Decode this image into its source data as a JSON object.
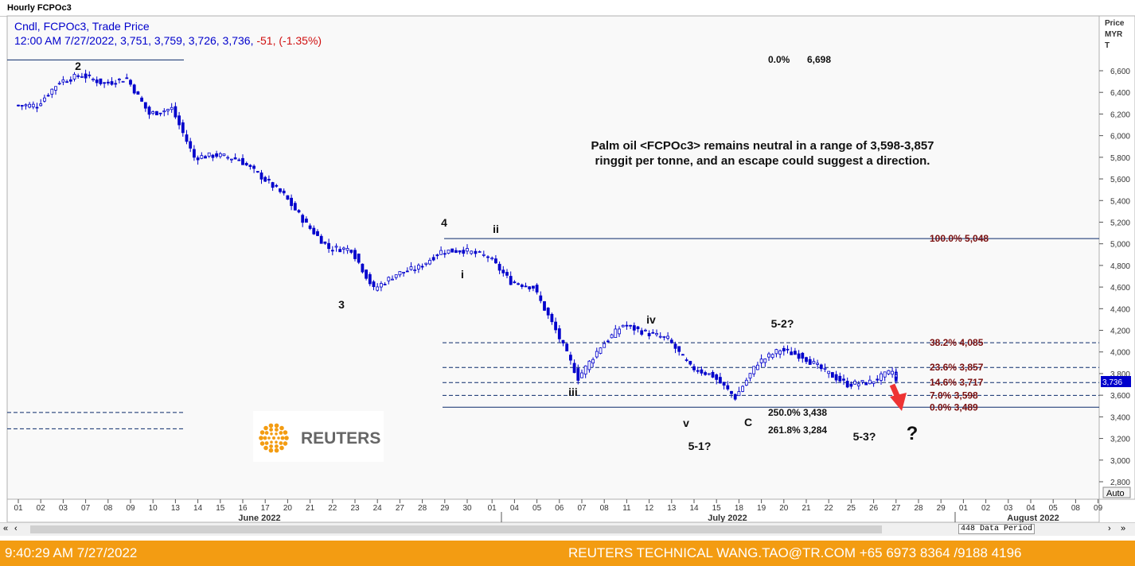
{
  "window": {
    "title": "Hourly FCPOc3"
  },
  "legend": {
    "line1": "Cndl, FCPOc3, Trade Price",
    "line2_prefix": "12:00 AM 7/27/2022, 3,751, 3,759, 3,726, 3,736, ",
    "line2_change": "-51, (-1.35%)"
  },
  "scale_label": [
    "Price",
    "MYR",
    "T"
  ],
  "zoom_label": "Auto",
  "data_period": "448 Data Period",
  "footer": {
    "timestamp": "9:40:29 AM 7/27/2022",
    "credit": "REUTERS TECHNICAL  WANG.TAO@TR.COM  +65 6973 8364 /9188 4196"
  },
  "logo_text": "REUTERS",
  "annotation": {
    "line1": "Palm oil <FCPOc3> remains neutral in a range of 3,598-3,857",
    "line2": "ringgit per tonne, and an escape could suggest a direction."
  },
  "colors": {
    "candle": "#0000cc",
    "fib": "#7a1010",
    "accent": "#f39c12",
    "arrow": "#ee3333"
  },
  "chart_data": {
    "type": "candlestick",
    "y_ticks": [
      2800,
      3000,
      3200,
      3400,
      3600,
      3800,
      4000,
      4200,
      4400,
      4600,
      4800,
      5000,
      5200,
      5400,
      5600,
      5800,
      6000,
      6200,
      6400,
      6600
    ],
    "y_tick_labels": [
      "2,800",
      "3,000",
      "3,200",
      "3,400",
      "3,600",
      "3,800",
      "4,000",
      "4,200",
      "4,400",
      "4,600",
      "4,800",
      "5,000",
      "5,200",
      "5,400",
      "5,600",
      "5,800",
      "6,000",
      "6,200",
      "6,400",
      "6,600"
    ],
    "ylim": [
      2700,
      6800
    ],
    "x_labels": [
      "01",
      "02",
      "03",
      "07",
      "08",
      "09",
      "10",
      "13",
      "14",
      "15",
      "16",
      "17",
      "20",
      "21",
      "22",
      "23",
      "24",
      "27",
      "28",
      "29",
      "30",
      "01",
      "04",
      "05",
      "06",
      "07",
      "08",
      "11",
      "12",
      "13",
      "14",
      "15",
      "18",
      "19",
      "20",
      "21",
      "22",
      "25",
      "26",
      "27",
      "28",
      "29",
      "01",
      "02",
      "03",
      "04",
      "05",
      "08",
      "09"
    ],
    "month_labels": [
      "June 2022",
      "July 2022",
      "August 2022"
    ],
    "last_price_label": "3,736",
    "fib_levels": [
      {
        "pct": "0.0%",
        "value": 6698,
        "value_label": "6,698"
      },
      {
        "pct": "100.0%",
        "value": 5048,
        "value_label": "5,048"
      },
      {
        "pct": "38.2%",
        "value": 4085,
        "value_label": "4,085"
      },
      {
        "pct": "23.6%",
        "value": 3857,
        "value_label": "3,857"
      },
      {
        "pct": "14.6%",
        "value": 3717,
        "value_label": "3,717"
      },
      {
        "pct": "7.0%",
        "value": 3598,
        "value_label": "3,598"
      },
      {
        "pct": "0.0%",
        "value": 3489,
        "value_label": "3,489"
      }
    ],
    "projections": [
      {
        "text": "250.0% 3,438"
      },
      {
        "text": "261.8% 3,284"
      }
    ],
    "left_levels": [
      {
        "value": 6700,
        "style": "solid"
      },
      {
        "value": 3440,
        "style": "dashed"
      },
      {
        "value": 3290,
        "style": "dashed"
      }
    ],
    "wave_labels": [
      "2",
      "4",
      "3",
      "ii",
      "i",
      "iv",
      "iii",
      "v",
      "5-1?",
      "C",
      "5-2?",
      "5-3?",
      "?"
    ],
    "series": [
      {
        "date": "2022-06-01",
        "close": 6280
      },
      {
        "date": "2022-06-02",
        "close": 6500
      },
      {
        "date": "2022-06-03",
        "close": 6560
      },
      {
        "date": "2022-06-07",
        "close": 6480
      },
      {
        "date": "2022-06-08",
        "close": 6530
      },
      {
        "date": "2022-06-09",
        "close": 6200
      },
      {
        "date": "2022-06-10",
        "close": 6250
      },
      {
        "date": "2022-06-13",
        "close": 5800
      },
      {
        "date": "2022-06-14",
        "close": 5820
      },
      {
        "date": "2022-06-15",
        "close": 5780
      },
      {
        "date": "2022-06-16",
        "close": 5620
      },
      {
        "date": "2022-06-17",
        "close": 5450
      },
      {
        "date": "2022-06-20",
        "close": 5180
      },
      {
        "date": "2022-06-21",
        "close": 4960
      },
      {
        "date": "2022-06-22",
        "close": 4950
      },
      {
        "date": "2022-06-23",
        "close": 4580
      },
      {
        "date": "2022-06-24",
        "close": 4720
      },
      {
        "date": "2022-06-27",
        "close": 4780
      },
      {
        "date": "2022-06-28",
        "close": 4930
      },
      {
        "date": "2022-06-29",
        "close": 4940
      },
      {
        "date": "2022-06-30",
        "close": 4880
      },
      {
        "date": "2022-07-01",
        "close": 4650
      },
      {
        "date": "2022-07-04",
        "close": 4600
      },
      {
        "date": "2022-07-05",
        "close": 4200
      },
      {
        "date": "2022-07-06",
        "close": 3760
      },
      {
        "date": "2022-07-07",
        "close": 4050
      },
      {
        "date": "2022-07-08",
        "close": 4250
      },
      {
        "date": "2022-07-11",
        "close": 4180
      },
      {
        "date": "2022-07-12",
        "close": 4120
      },
      {
        "date": "2022-07-13",
        "close": 3860
      },
      {
        "date": "2022-07-14",
        "close": 3780
      },
      {
        "date": "2022-07-15",
        "close": 3580
      },
      {
        "date": "2022-07-18",
        "close": 3900
      },
      {
        "date": "2022-07-19",
        "close": 4020
      },
      {
        "date": "2022-07-20",
        "close": 3960
      },
      {
        "date": "2022-07-21",
        "close": 3820
      },
      {
        "date": "2022-07-22",
        "close": 3700
      },
      {
        "date": "2022-07-25",
        "close": 3720
      },
      {
        "date": "2022-07-26",
        "close": 3820
      },
      {
        "date": "2022-07-27",
        "close": 3736
      }
    ]
  }
}
